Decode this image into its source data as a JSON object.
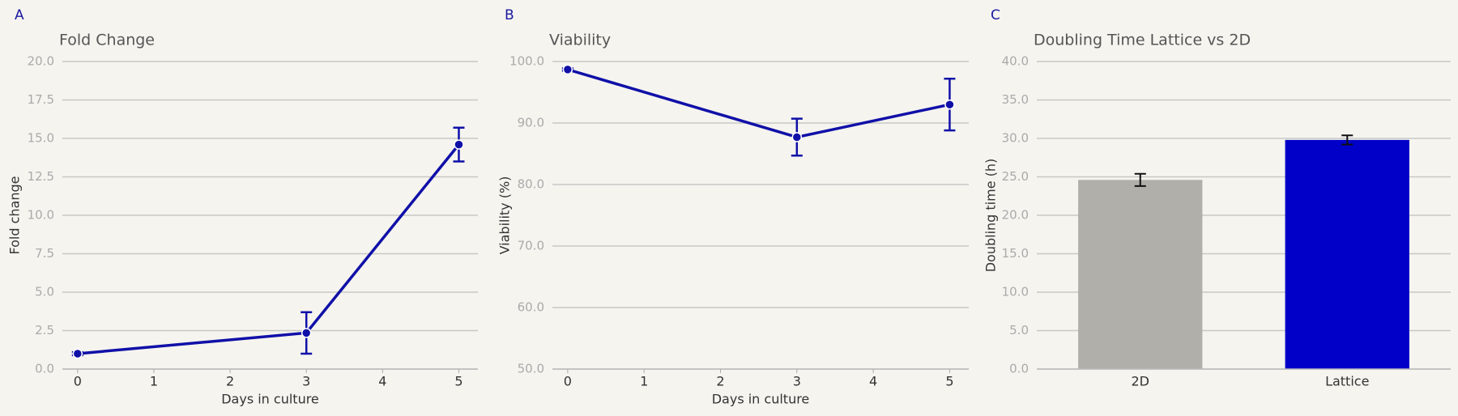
{
  "chart_data": [
    {
      "type": "line",
      "label": "A",
      "title": "Fold Change",
      "xlabel": "Days in culture",
      "ylabel": "Fold change",
      "x": [
        0,
        3,
        5
      ],
      "values": [
        1.0,
        2.35,
        14.6
      ],
      "errors": [
        0.1,
        1.35,
        1.1
      ],
      "color": "#1010a8",
      "xlim": [
        -0.2,
        5.25
      ],
      "xticks": [
        0,
        1,
        2,
        3,
        4,
        5
      ],
      "ylim": [
        0,
        20
      ],
      "yticks": [
        {
          "value": 0,
          "label": "0.0"
        },
        2.5,
        {
          "value": 5,
          "label": "5.0"
        },
        7.5,
        {
          "value": 10,
          "label": "10.0"
        },
        12.5,
        {
          "value": 15,
          "label": "15.0"
        },
        17.5,
        {
          "value": 20,
          "label": "20.0"
        }
      ],
      "grid": true
    },
    {
      "type": "line",
      "label": "B",
      "title": "Viability",
      "xlabel": "Days in culture",
      "ylabel": "Viability (%)",
      "x": [
        0,
        3,
        5
      ],
      "values": [
        98.7,
        87.7,
        93.0
      ],
      "errors": [
        0.2,
        3.0,
        4.2
      ],
      "color": "#1010a8",
      "xlim": [
        -0.2,
        5.25
      ],
      "xticks": [
        0,
        1,
        2,
        3,
        4,
        5
      ],
      "ylim": [
        50,
        100
      ],
      "yticks": [
        {
          "value": 50,
          "label": "50.0"
        },
        {
          "value": 60,
          "label": "60.0"
        },
        {
          "value": 70,
          "label": "70.0"
        },
        {
          "value": 80,
          "label": "80.0"
        },
        {
          "value": 90,
          "label": "90.0"
        },
        {
          "value": 100,
          "label": "100.0"
        }
      ],
      "grid": true
    },
    {
      "type": "bar",
      "label": "C",
      "title": "Doubling Time Lattice vs 2D",
      "ylabel": "Doubling time (h)",
      "categories": [
        "2D",
        "Lattice"
      ],
      "values": [
        24.6,
        29.8
      ],
      "errors": [
        0.8,
        0.6
      ],
      "colors": [
        "#b0afaa",
        "#0000c8"
      ],
      "error_color": "#111111",
      "ylim": [
        0,
        40
      ],
      "yticks": [
        {
          "value": 0,
          "label": "0.0"
        },
        {
          "value": 5,
          "label": "5.0"
        },
        {
          "value": 10,
          "label": "10.0"
        },
        {
          "value": 15,
          "label": "15.0"
        },
        {
          "value": 20,
          "label": "20.0"
        },
        {
          "value": 25,
          "label": "25.0"
        },
        {
          "value": 30,
          "label": "30.0"
        },
        {
          "value": 35,
          "label": "35.0"
        },
        {
          "value": 40,
          "label": "40.0"
        }
      ],
      "grid": true
    }
  ]
}
